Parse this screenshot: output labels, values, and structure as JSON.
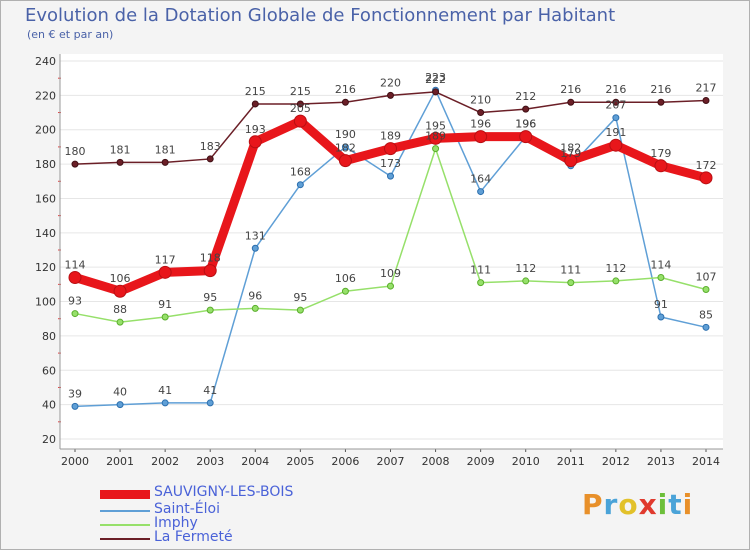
{
  "title": "Evolution de la Dotation Globale de Fonctionnement par Habitant",
  "subtitle": "(en € et par an)",
  "logo": "Proxiti",
  "chart_data": {
    "type": "line",
    "title": "Evolution de la Dotation Globale de Fonctionnement par Habitant",
    "ylabel": "(en € et par an)",
    "xlabel": "",
    "ylim": [
      20,
      240
    ],
    "yticks": [
      20,
      40,
      60,
      80,
      100,
      120,
      140,
      160,
      180,
      200,
      220,
      240
    ],
    "grid": "horizontal",
    "legend_position": "bottom-left",
    "categories": [
      "2000",
      "2001",
      "2002",
      "2003",
      "2004",
      "2005",
      "2006",
      "2007",
      "2008",
      "2009",
      "2010",
      "2011",
      "2012",
      "2013",
      "2014"
    ],
    "series": [
      {
        "name": "SAUVIGNY-LES-BOIS",
        "color": "#e8161b",
        "values": [
          114,
          106,
          117,
          118,
          193,
          205,
          182,
          189,
          195,
          196,
          196,
          182,
          191,
          179,
          172
        ]
      },
      {
        "name": "Saint-Éloi",
        "color": "#5f9fd6",
        "values": [
          39,
          40,
          41,
          41,
          131,
          168,
          190,
          173,
          223,
          164,
          196,
          179,
          207,
          91,
          85
        ]
      },
      {
        "name": "Imphy",
        "color": "#96e06a",
        "values": [
          93,
          88,
          91,
          95,
          96,
          95,
          106,
          109,
          189,
          111,
          112,
          111,
          112,
          114,
          107
        ]
      },
      {
        "name": "La Fermeté",
        "color": "#6b1f27",
        "values": [
          180,
          181,
          181,
          183,
          215,
          215,
          216,
          220,
          222,
          210,
          212,
          216,
          216,
          216,
          217
        ]
      }
    ]
  }
}
